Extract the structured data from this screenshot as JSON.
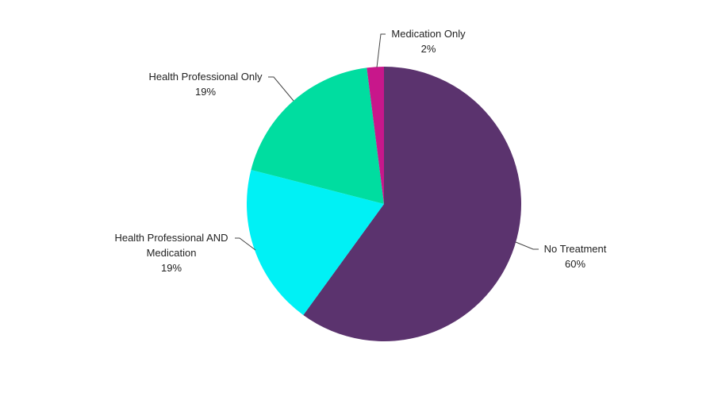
{
  "chart_data": {
    "type": "pie",
    "categories": [
      "No Treatment",
      "Health Professional AND Medication",
      "Health Professional Only",
      "Medication Only"
    ],
    "values": [
      60,
      19,
      19,
      2
    ],
    "value_labels": [
      "60%",
      "19%",
      "19%",
      "2%"
    ],
    "colors": [
      "#5b336e",
      "#00f1f5",
      "#00dda0",
      "#c8178b"
    ]
  }
}
